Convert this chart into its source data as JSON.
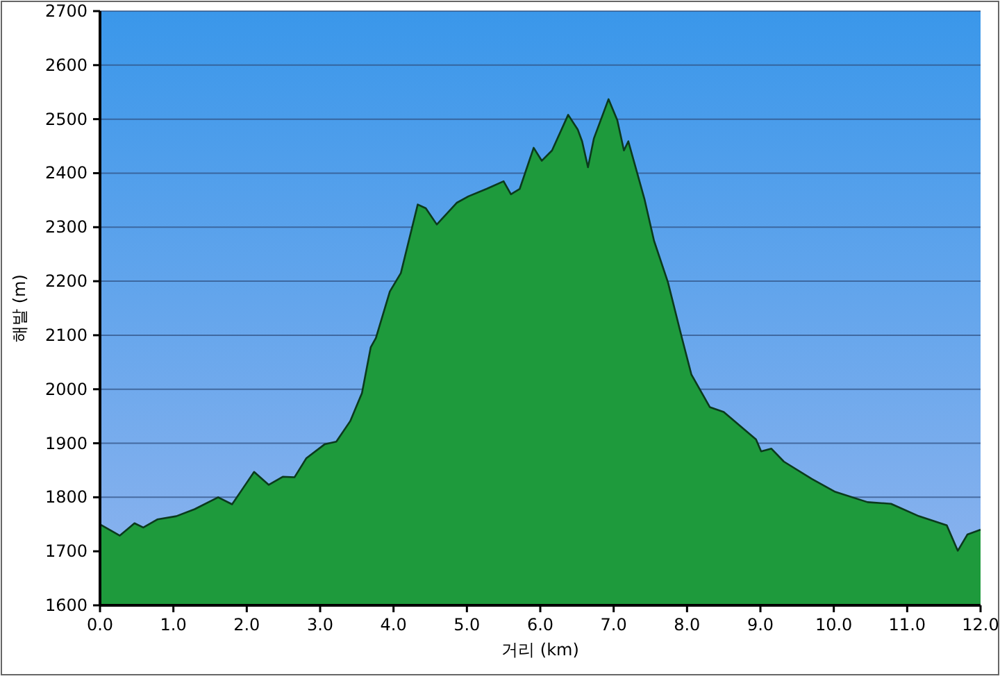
{
  "chart_data": {
    "type": "area",
    "xlabel": "거리 (km)",
    "ylabel": "해발 (m)",
    "color": "#1e9a3c",
    "x": [
      0,
      0.27,
      0.47,
      0.59,
      0.78,
      1.04,
      1.29,
      1.61,
      1.8,
      1.95,
      2.1,
      2.3,
      2.49,
      2.65,
      2.81,
      3.06,
      3.22,
      3.41,
      3.57,
      3.69,
      3.76,
      3.95,
      4.1,
      4.33,
      4.44,
      4.59,
      4.86,
      5.02,
      5.27,
      5.5,
      5.6,
      5.72,
      5.91,
      6.02,
      6.16,
      6.38,
      6.51,
      6.57,
      6.65,
      6.73,
      6.93,
      7.05,
      7.14,
      7.2,
      7.42,
      7.55,
      7.74,
      7.93,
      8.06,
      8.31,
      8.5,
      8.94,
      9.01,
      9.15,
      9.32,
      9.7,
      10.02,
      10.46,
      10.78,
      11.16,
      11.54,
      11.69,
      11.82,
      12
    ],
    "values": [
      1750,
      1729,
      1752,
      1744,
      1759,
      1765,
      1778,
      1800,
      1787,
      1817,
      1847,
      1823,
      1838,
      1837,
      1872,
      1898,
      1903,
      1941,
      1993,
      2078,
      2095,
      2181,
      2215,
      2342,
      2335,
      2305,
      2345,
      2357,
      2371,
      2385,
      2361,
      2371,
      2447,
      2423,
      2442,
      2508,
      2481,
      2459,
      2411,
      2464,
      2537,
      2498,
      2442,
      2459,
      2352,
      2275,
      2198,
      2095,
      2027,
      1967,
      1958,
      1907,
      1885,
      1890,
      1866,
      1834,
      1810,
      1791,
      1788,
      1765,
      1748,
      1701,
      1731,
      1740
    ],
    "xlim": [
      0,
      12
    ],
    "ylim": [
      1600,
      2700
    ],
    "xticks": [
      {
        "value": 0,
        "label": "0.0"
      },
      {
        "value": 1,
        "label": "1.0"
      },
      {
        "value": 2,
        "label": "2.0"
      },
      {
        "value": 3,
        "label": "3.0"
      },
      {
        "value": 4,
        "label": "4.0"
      },
      {
        "value": 5,
        "label": "5.0"
      },
      {
        "value": 6,
        "label": "6.0"
      },
      {
        "value": 7,
        "label": "7.0"
      },
      {
        "value": 8,
        "label": "8.0"
      },
      {
        "value": 9,
        "label": "9.0"
      },
      {
        "value": 10,
        "label": "10.0"
      },
      {
        "value": 11,
        "label": "11.0"
      },
      {
        "value": 12,
        "label": "12.0"
      }
    ],
    "yticks": [
      1600,
      1700,
      1800,
      1900,
      2000,
      2100,
      2200,
      2300,
      2400,
      2500,
      2600,
      2700
    ],
    "grid": "y"
  }
}
